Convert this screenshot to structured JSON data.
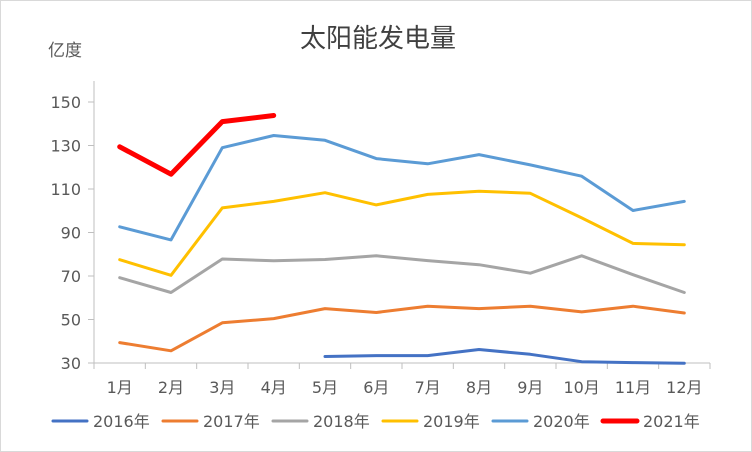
{
  "chart_data": {
    "type": "line",
    "title": "太阳能发电量",
    "ylabel": "亿度",
    "xlabel": "",
    "categories": [
      "1月",
      "2月",
      "3月",
      "4月",
      "5月",
      "6月",
      "7月",
      "8月",
      "9月",
      "10月",
      "11月",
      "12月"
    ],
    "ylim": [
      30,
      150
    ],
    "yticks": [
      30,
      50,
      70,
      90,
      110,
      130,
      150
    ],
    "grid": false,
    "legend_position": "bottom",
    "series": [
      {
        "name": "2016年",
        "color": "#4472C4",
        "width": 3,
        "values": [
          null,
          null,
          null,
          null,
          33,
          33.4,
          33.4,
          36.2,
          34,
          30.6,
          30.2,
          29.9
        ]
      },
      {
        "name": "2017年",
        "color": "#ED7D31",
        "width": 3,
        "values": [
          39.4,
          35.6,
          48.5,
          50.4,
          55,
          53.2,
          56.1,
          55,
          56.1,
          53.5,
          56.1,
          53
        ]
      },
      {
        "name": "2018年",
        "color": "#A5A5A5",
        "width": 3,
        "values": [
          69.2,
          62.4,
          77.8,
          77,
          77.6,
          79.3,
          77.1,
          75.2,
          71.3,
          79.3,
          70.6,
          62.4
        ]
      },
      {
        "name": "2019年",
        "color": "#FFC000",
        "width": 3,
        "values": [
          77.5,
          70.3,
          101.3,
          104.3,
          108.3,
          102.7,
          107.5,
          109,
          108,
          96.7,
          85,
          84.4
        ]
      },
      {
        "name": "2020年",
        "color": "#5B9BD5",
        "width": 3,
        "values": [
          92.6,
          86.6,
          129,
          134.6,
          132.4,
          124,
          121.6,
          125.8,
          121.1,
          115.9,
          100.1,
          104.3
        ]
      },
      {
        "name": "2021年",
        "color": "#FF0000",
        "width": 5,
        "values": [
          129.4,
          116.8,
          141,
          143.8,
          null,
          null,
          null,
          null,
          null,
          null,
          null,
          null
        ]
      }
    ]
  }
}
